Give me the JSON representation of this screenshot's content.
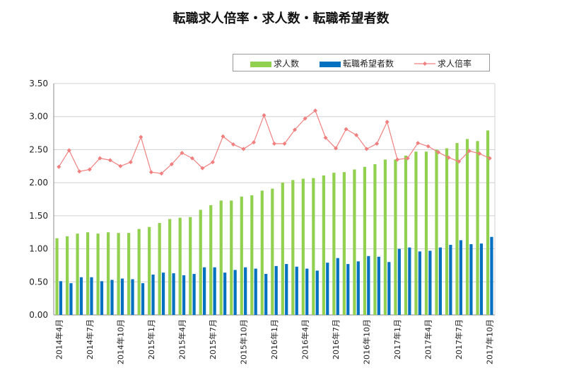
{
  "chart_data": {
    "type": "bar",
    "title": "転職求人倍率・求人数・転職希望者数",
    "xlabel": "",
    "ylabel": "",
    "ylim": [
      0,
      3.5
    ],
    "yticks": [
      "0.00",
      "0.50",
      "1.00",
      "1.50",
      "2.00",
      "2.50",
      "3.00",
      "3.50"
    ],
    "grid": true,
    "legend_position": "top-right",
    "categories": [
      "2014年4月",
      "2014年5月",
      "2014年6月",
      "2014年7月",
      "2014年8月",
      "2014年9月",
      "2014年10月",
      "2014年11月",
      "2014年12月",
      "2015年1月",
      "2015年2月",
      "2015年3月",
      "2015年4月",
      "2015年5月",
      "2015年6月",
      "2015年7月",
      "2015年8月",
      "2015年9月",
      "2015年10月",
      "2015年11月",
      "2015年12月",
      "2016年1月",
      "2016年2月",
      "2016年3月",
      "2016年4月",
      "2016年5月",
      "2016年6月",
      "2016年7月",
      "2016年8月",
      "2016年9月",
      "2016年10月",
      "2016年11月",
      "2016年12月",
      "2017年1月",
      "2017年2月",
      "2017年3月",
      "2017年4月",
      "2017年5月",
      "2017年6月",
      "2017年7月",
      "2017年8月",
      "2017年9月",
      "2017年10月"
    ],
    "tick_labels": [
      "2014年4月",
      "",
      "",
      "2014年7月",
      "",
      "",
      "2014年10月",
      "",
      "",
      "2015年1月",
      "",
      "",
      "2015年4月",
      "",
      "",
      "2015年7月",
      "",
      "",
      "2015年10月",
      "",
      "",
      "2016年1月",
      "",
      "",
      "2016年4月",
      "",
      "",
      "2016年7月",
      "",
      "",
      "2016年10月",
      "",
      "",
      "2017年1月",
      "",
      "",
      "2017年4月",
      "",
      "",
      "2017年7月",
      "",
      "",
      "2017年10月"
    ],
    "series": [
      {
        "name": "求人数",
        "type": "bar",
        "color": "#92d050",
        "values": [
          1.16,
          1.19,
          1.23,
          1.25,
          1.23,
          1.25,
          1.24,
          1.24,
          1.3,
          1.33,
          1.39,
          1.45,
          1.47,
          1.48,
          1.59,
          1.66,
          1.73,
          1.73,
          1.79,
          1.81,
          1.88,
          1.91,
          2.0,
          2.04,
          2.06,
          2.07,
          2.11,
          2.15,
          2.16,
          2.2,
          2.24,
          2.28,
          2.35,
          2.35,
          2.41,
          2.47,
          2.47,
          2.5,
          2.52,
          2.6,
          2.66,
          2.63,
          2.79
        ]
      },
      {
        "name": "転職希望者数",
        "type": "bar",
        "color": "#0070c0",
        "values": [
          0.51,
          0.48,
          0.57,
          0.57,
          0.51,
          0.53,
          0.55,
          0.54,
          0.48,
          0.61,
          0.64,
          0.63,
          0.6,
          0.62,
          0.72,
          0.72,
          0.64,
          0.68,
          0.72,
          0.7,
          0.62,
          0.74,
          0.77,
          0.73,
          0.7,
          0.67,
          0.79,
          0.86,
          0.77,
          0.81,
          0.89,
          0.88,
          0.8,
          1.0,
          1.02,
          0.96,
          0.97,
          1.02,
          1.06,
          1.13,
          1.07,
          1.08,
          1.18
        ]
      },
      {
        "name": "求人倍率",
        "type": "line",
        "color": "#f08080",
        "values": [
          2.24,
          2.49,
          2.17,
          2.2,
          2.37,
          2.34,
          2.25,
          2.31,
          2.69,
          2.16,
          2.14,
          2.28,
          2.45,
          2.37,
          2.22,
          2.31,
          2.7,
          2.58,
          2.51,
          2.61,
          3.02,
          2.59,
          2.59,
          2.8,
          2.97,
          3.09,
          2.68,
          2.52,
          2.81,
          2.72,
          2.51,
          2.59,
          2.92,
          2.35,
          2.37,
          2.6,
          2.55,
          2.46,
          2.38,
          2.32,
          2.48,
          2.44,
          2.37
        ]
      }
    ]
  }
}
